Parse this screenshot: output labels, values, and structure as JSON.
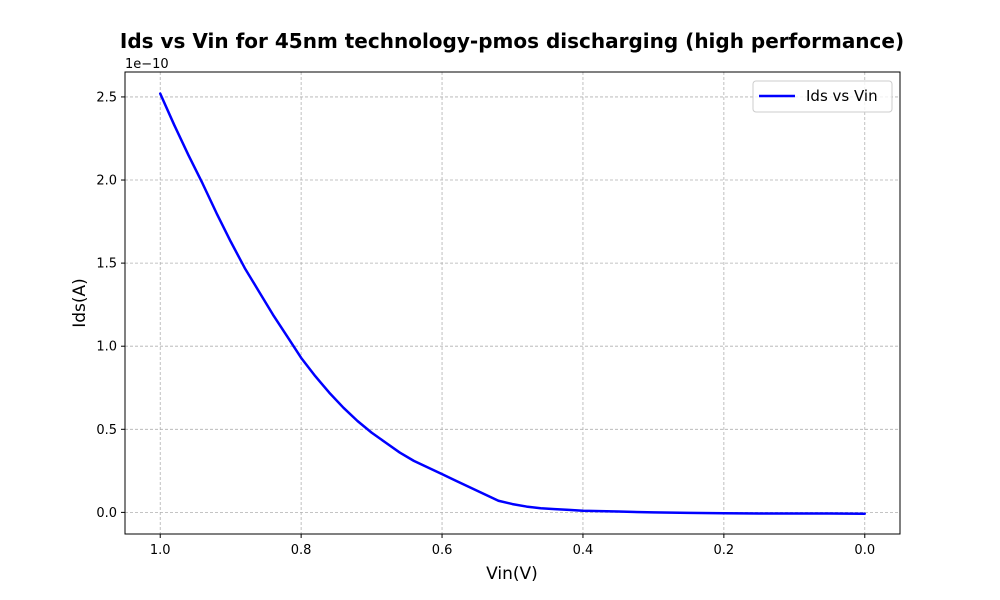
{
  "chart_data": {
    "type": "line",
    "title": "Ids vs Vin for 45nm technology-pmos discharging (high performance)",
    "xlabel": "Vin(V)",
    "ylabel": "Ids(A)",
    "y_offset_label": "1e−10",
    "x_inverted": true,
    "xlim": [
      1.05,
      -0.05
    ],
    "ylim": [
      -0.13,
      2.65
    ],
    "x_ticks": [
      1.0,
      0.8,
      0.6,
      0.4,
      0.2,
      0.0
    ],
    "x_tick_labels": [
      "1.0",
      "0.8",
      "0.6",
      "0.4",
      "0.2",
      "0.0"
    ],
    "y_ticks": [
      0.0,
      0.5,
      1.0,
      1.5,
      2.0,
      2.5
    ],
    "y_tick_labels": [
      "0.0",
      "0.5",
      "1.0",
      "1.5",
      "2.0",
      "2.5"
    ],
    "grid": true,
    "legend_position": "top-right",
    "series": [
      {
        "name": "Ids vs Vin",
        "color": "#0000ff",
        "x": [
          1.0,
          0.98,
          0.96,
          0.94,
          0.92,
          0.9,
          0.88,
          0.86,
          0.84,
          0.82,
          0.8,
          0.78,
          0.76,
          0.74,
          0.72,
          0.7,
          0.68,
          0.66,
          0.64,
          0.62,
          0.6,
          0.58,
          0.56,
          0.54,
          0.52,
          0.5,
          0.48,
          0.46,
          0.44,
          0.42,
          0.4,
          0.35,
          0.3,
          0.25,
          0.2,
          0.15,
          0.1,
          0.05,
          0.0
        ],
        "y": [
          2.52,
          2.33,
          2.15,
          1.98,
          1.8,
          1.63,
          1.47,
          1.33,
          1.19,
          1.06,
          0.93,
          0.82,
          0.72,
          0.63,
          0.55,
          0.48,
          0.42,
          0.36,
          0.31,
          0.27,
          0.23,
          0.19,
          0.15,
          0.11,
          0.07,
          0.05,
          0.035,
          0.025,
          0.02,
          0.015,
          0.01,
          0.005,
          0.0,
          -0.003,
          -0.005,
          -0.007,
          -0.007,
          -0.007,
          -0.008
        ]
      }
    ]
  }
}
